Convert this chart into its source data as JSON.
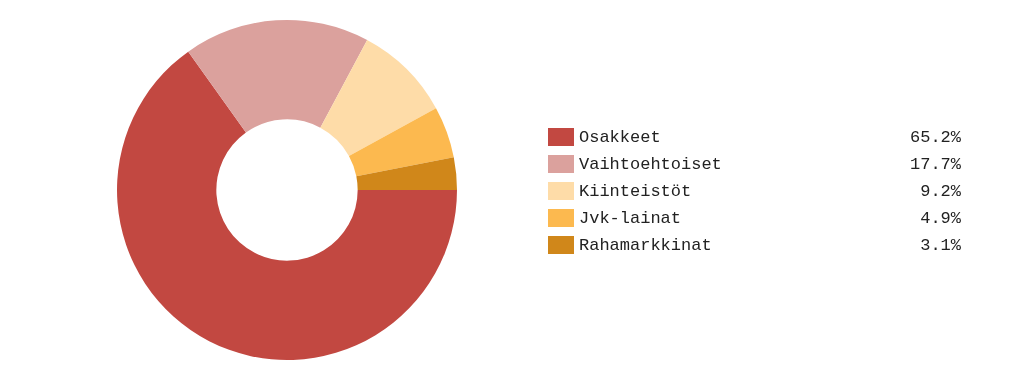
{
  "chart_data": {
    "type": "donut",
    "categories": [
      "Osakkeet",
      "Vaihtoehtoiset",
      "Kiinteistöt",
      "Jvk-lainat",
      "Rahamarkkinat"
    ],
    "values": [
      65.2,
      17.7,
      9.2,
      4.9,
      3.1
    ],
    "value_labels": [
      "65.2%",
      "17.7%",
      "9.2%",
      "4.9%",
      "3.1%"
    ],
    "colors": [
      "#c24841",
      "#dba19d",
      "#fedca8",
      "#fcb94f",
      "#d0871a"
    ],
    "legend": "right"
  }
}
